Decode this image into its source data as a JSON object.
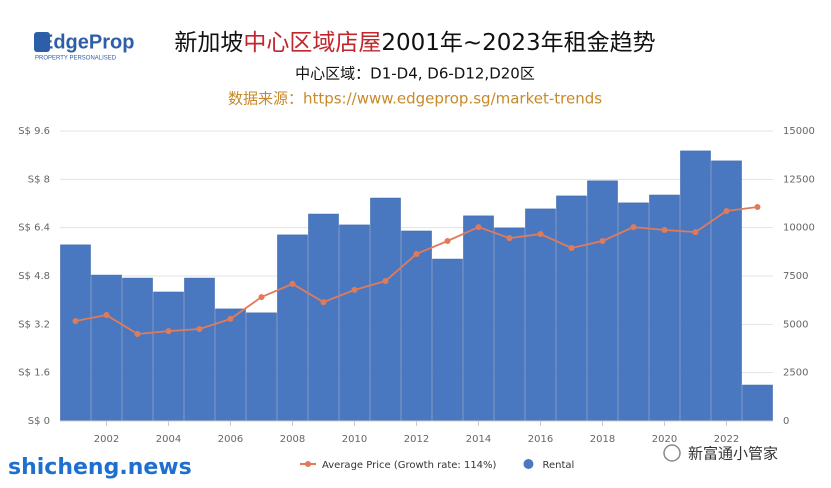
{
  "logo": {
    "name": "EdgeProp",
    "tagline": "PROPERTY PERSONALISED"
  },
  "watermarks": [
    "shicheng.news",
    "新富通小管家"
  ],
  "chart_data": {
    "type": "bar",
    "title": [
      "新加坡",
      "中心区域店屋",
      "2001年~2023年租金趋势"
    ],
    "subtitle": "中心区域：D1-D4, D6-D12,D20区",
    "source": "数据来源：https://www.edgeprop.sg/market-trends",
    "categories": [
      null,
      "2002",
      null,
      "2004",
      null,
      "2006",
      null,
      "2008",
      null,
      "2010",
      null,
      "2012",
      null,
      "2014",
      null,
      "2016",
      null,
      "2018",
      null,
      "2020",
      null,
      "2022",
      null
    ],
    "series": [
      {
        "name": "Average Price (Growth rate: 114%)",
        "type": "line",
        "axis": "y2",
        "color": "#e07b5a",
        "values": [
          5170,
          5480,
          4500,
          4650,
          4760,
          5280,
          6410,
          7090,
          6150,
          6780,
          7240,
          8640,
          9310,
          10030,
          9460,
          9670,
          8950,
          9310,
          10030,
          9880,
          9770,
          10860,
          11070
        ]
      },
      {
        "name": "Rental",
        "type": "bar",
        "color": "#4a78c0",
        "values": [
          5.83,
          4.83,
          4.73,
          4.27,
          4.73,
          3.71,
          3.58,
          6.16,
          6.85,
          6.49,
          7.38,
          6.29,
          5.36,
          6.79,
          6.39,
          7.02,
          7.45,
          7.95,
          7.22,
          7.48,
          8.94,
          8.61,
          1.19
        ]
      }
    ],
    "ylim": [
      0,
      9.6
    ],
    "yticks": [
      {
        "value": 0,
        "label": "S$ 0"
      },
      {
        "value": 1.6,
        "label": "S$ 1.6"
      },
      {
        "value": 3.2,
        "label": "S$ 3.2"
      },
      {
        "value": 4.8,
        "label": "S$ 4.8"
      },
      {
        "value": 6.4,
        "label": "S$ 6.4"
      },
      {
        "value": 8,
        "label": "S$ 8"
      },
      {
        "value": 9.6,
        "label": "S$ 9.6"
      }
    ],
    "y2lim": [
      0,
      15000
    ],
    "y2ticks": [
      0,
      2500,
      5000,
      7500,
      10000,
      12500,
      15000
    ],
    "grid": true,
    "legend": "bottom"
  }
}
